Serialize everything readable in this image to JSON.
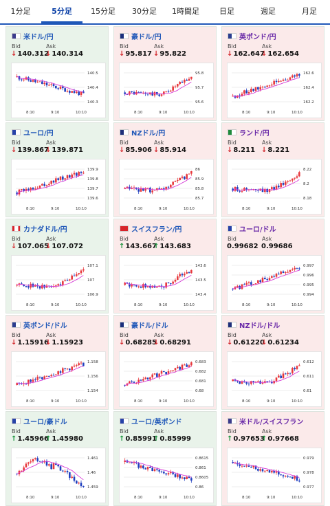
{
  "tabs": [
    "1分足",
    "5分足",
    "15分足",
    "30分足",
    "1時間足",
    "日足",
    "週足",
    "月足"
  ],
  "active_tab": 1,
  "labels": {
    "bid": "Bid",
    "ask": "Ask"
  },
  "colors": {
    "down": "#d2262b",
    "up": "#159138",
    "bull_candle": "#e8383d",
    "bear_candle": "#1f3fbf",
    "ma_line": "#d63bd6",
    "title_blue": "#1f57b8",
    "title_purple": "#6a2aa8"
  },
  "cards": [
    {
      "title": "米ドル/円",
      "flag": "us",
      "bg": "green",
      "bid": "140.312",
      "ask": "140.314",
      "bid_dir": "down",
      "ask_dir": "down",
      "yticks": [
        "140.5",
        "140.4",
        "140.3"
      ],
      "xticks": [
        "8:10",
        "9:10",
        "10:10"
      ],
      "trend": "down"
    },
    {
      "title": "豪ドル/円",
      "flag": "au",
      "bg": "pink",
      "bid": "95.817",
      "ask": "95.822",
      "bid_dir": "down",
      "ask_dir": "down",
      "yticks": [
        "95.8",
        "95.7",
        "95.6"
      ],
      "xticks": [
        "8:10",
        "9:10",
        "10:10"
      ],
      "trend": "upend"
    },
    {
      "title": "英ポンド/円",
      "flag": "gb",
      "bg": "pink",
      "purple": true,
      "bid": "162.647",
      "ask": "162.654",
      "bid_dir": "down",
      "ask_dir": "down",
      "yticks": [
        "162.6",
        "162.4",
        "162.2"
      ],
      "xticks": [
        "8:10",
        "9:10",
        "10:10"
      ],
      "trend": "up"
    },
    {
      "title": "ユーロ/円",
      "flag": "eu",
      "bg": "green",
      "bid": "139.867",
      "ask": "139.871",
      "bid_dir": "down",
      "ask_dir": "down",
      "yticks": [
        "139.9",
        "139.8",
        "139.7",
        "139.6"
      ],
      "xticks": [
        "8:10",
        "9:10",
        "10:10"
      ],
      "trend": "up"
    },
    {
      "title": "NZドル/円",
      "flag": "nz",
      "bg": "pink",
      "bid": "85.906",
      "ask": "85.914",
      "bid_dir": "down",
      "ask_dir": "down",
      "yticks": [
        "86",
        "85.9",
        "85.8",
        "85.7"
      ],
      "xticks": [
        "8:10",
        "9:10",
        "10:10"
      ],
      "trend": "upend"
    },
    {
      "title": "ランド/円",
      "flag": "za",
      "bg": "pink",
      "purple": true,
      "bid": "8.211",
      "ask": "8.221",
      "bid_dir": "down",
      "ask_dir": "down",
      "yticks": [
        "8.22",
        "8.2",
        "8.18"
      ],
      "xticks": [
        "8:10",
        "9:10",
        "10:10"
      ],
      "trend": "upend"
    },
    {
      "title": "カナダドル/円",
      "flag": "ca",
      "bg": "green",
      "bid": "107.065",
      "ask": "107.072",
      "bid_dir": "down",
      "ask_dir": "down",
      "yticks": [
        "107.1",
        "107",
        "106.9"
      ],
      "xticks": [
        "8:10",
        "9:10",
        "10:10"
      ],
      "trend": "upend"
    },
    {
      "title": "スイスフラン/円",
      "flag": "ch",
      "bg": "pink",
      "bid": "143.667",
      "ask": "143.683",
      "bid_dir": "up",
      "ask_dir": "up",
      "yticks": [
        "143.6",
        "143.5",
        "143.4"
      ],
      "xticks": [
        "8:10",
        "9:10",
        "10:10"
      ],
      "trend": "upend"
    },
    {
      "title": "ユーロ/ドル",
      "flag": "eu",
      "bg": "pink",
      "purple": true,
      "bid": "0.99682",
      "ask": "0.99686",
      "bid_dir": "none",
      "ask_dir": "none",
      "yticks": [
        "0.997",
        "0.996",
        "0.995",
        "0.994"
      ],
      "xticks": [
        "8:10",
        "9:10",
        "10:10"
      ],
      "trend": "up"
    },
    {
      "title": "英ポンド/ドル",
      "flag": "gb",
      "bg": "pink",
      "bid": "1.15916",
      "ask": "1.15923",
      "bid_dir": "down",
      "ask_dir": "down",
      "yticks": [
        "1.158",
        "1.156",
        "1.154"
      ],
      "xticks": [
        "8:10",
        "9:10",
        "10:10"
      ],
      "trend": "up"
    },
    {
      "title": "豪ドル/ドル",
      "flag": "au",
      "bg": "pink",
      "bid": "0.68285",
      "ask": "0.68291",
      "bid_dir": "down",
      "ask_dir": "down",
      "yticks": [
        "0.683",
        "0.682",
        "0.681",
        "0.68"
      ],
      "xticks": [
        "8:10",
        "9:10",
        "10:10"
      ],
      "trend": "up"
    },
    {
      "title": "NZドル/ドル",
      "flag": "nz",
      "bg": "pink",
      "purple": true,
      "bid": "0.61220",
      "ask": "0.61234",
      "bid_dir": "down",
      "ask_dir": "down",
      "yticks": [
        "0.612",
        "0.611",
        "0.61"
      ],
      "xticks": [
        "8:10",
        "9:10",
        "10:10"
      ],
      "trend": "upend"
    },
    {
      "title": "ユーロ/豪ドル",
      "flag": "eu",
      "bg": "green",
      "bid": "1.45966",
      "ask": "1.45980",
      "bid_dir": "up",
      "ask_dir": "up",
      "yticks": [
        "1.461",
        "1.46",
        "1.459"
      ],
      "xticks": [
        "8:10",
        "9:10",
        "10:10"
      ],
      "trend": "humpdown"
    },
    {
      "title": "ユーロ/英ポンド",
      "flag": "eu",
      "bg": "green",
      "bid": "0.85991",
      "ask": "0.85999",
      "bid_dir": "up",
      "ask_dir": "up",
      "yticks": [
        "0.8615",
        "0.861",
        "0.8605",
        "0.86"
      ],
      "xticks": [
        "8:10",
        "9:10",
        "10:10"
      ],
      "trend": "down"
    },
    {
      "title": "米ドル/スイスフラン",
      "flag": "us",
      "bg": "pink",
      "purple": true,
      "bid": "0.97653",
      "ask": "0.97668",
      "bid_dir": "up",
      "ask_dir": "up",
      "yticks": [
        "0.979",
        "0.978",
        "0.977"
      ],
      "xticks": [
        "8:10",
        "9:10",
        "10:10"
      ],
      "trend": "down"
    }
  ]
}
